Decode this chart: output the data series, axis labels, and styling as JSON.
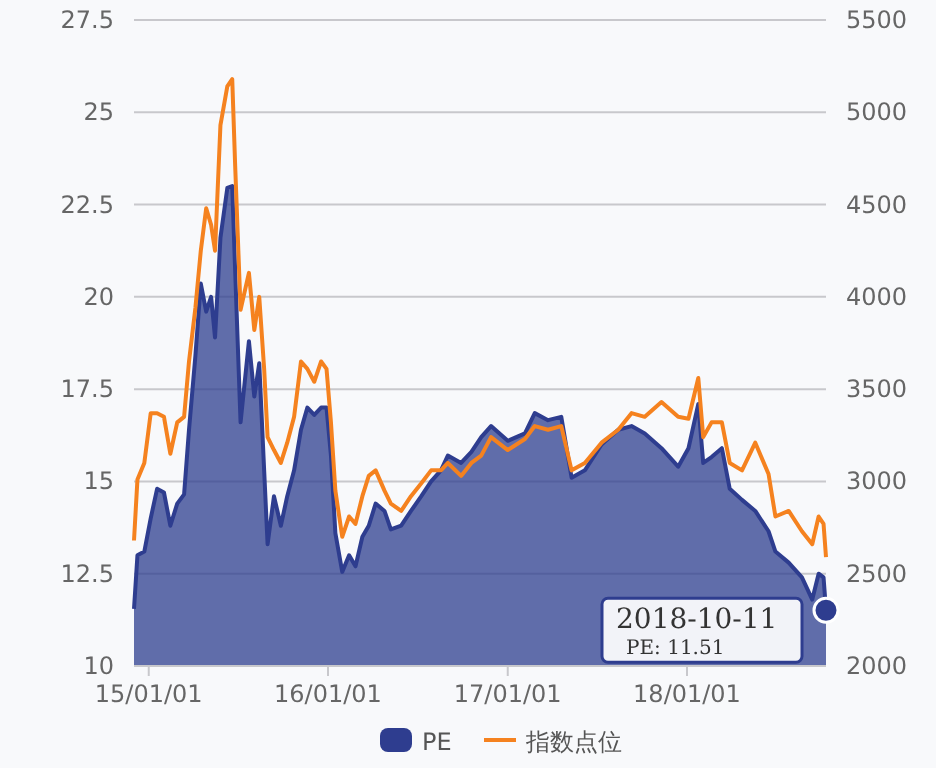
{
  "chart_data": {
    "type": "area",
    "x": [
      "2014-12-02",
      "2014-12-09",
      "2014-12-23",
      "2015-01-05",
      "2015-01-18",
      "2015-02-01",
      "2015-02-14",
      "2015-02-28",
      "2015-03-14",
      "2015-03-24",
      "2015-04-06",
      "2015-04-17",
      "2015-04-28",
      "2015-05-08",
      "2015-05-16",
      "2015-05-27",
      "2015-06-10",
      "2015-06-20",
      "2015-06-26",
      "2015-07-07",
      "2015-07-24",
      "2015-08-04",
      "2015-08-14",
      "2015-08-24",
      "2015-08-31",
      "2015-09-13",
      "2015-09-27",
      "2015-10-10",
      "2015-10-24",
      "2015-11-07",
      "2015-11-20",
      "2015-12-04",
      "2015-12-18",
      "2015-12-29",
      "2016-01-07",
      "2016-01-16",
      "2016-01-30",
      "2016-02-13",
      "2016-02-26",
      "2016-03-11",
      "2016-03-24",
      "2016-04-07",
      "2016-04-25",
      "2016-05-08",
      "2016-05-29",
      "2016-06-18",
      "2016-07-09",
      "2016-07-29",
      "2016-08-18",
      "2016-09-01",
      "2016-09-28",
      "2016-10-19",
      "2016-11-08",
      "2016-11-28",
      "2017-01-01",
      "2017-02-05",
      "2017-02-25",
      "2017-03-24",
      "2017-04-20",
      "2017-05-11",
      "2017-06-07",
      "2017-07-11",
      "2017-08-14",
      "2017-09-10",
      "2017-10-07",
      "2017-11-10",
      "2017-12-14",
      "2018-01-04",
      "2018-01-24",
      "2018-02-03",
      "2018-02-20",
      "2018-03-13",
      "2018-03-29",
      "2018-04-23",
      "2018-05-20",
      "2018-06-16",
      "2018-06-30",
      "2018-07-27",
      "2018-08-23",
      "2018-09-13",
      "2018-09-26",
      "2018-10-06",
      "2018-10-11"
    ],
    "series": [
      {
        "name": "PE",
        "color": "#2e3d8f",
        "values": [
          11.55,
          13.0,
          13.1,
          14.0,
          14.8,
          14.7,
          13.8,
          14.4,
          14.65,
          16.4,
          18.4,
          20.36,
          19.6,
          20.0,
          18.9,
          21.6,
          22.95,
          23.0,
          20.7,
          16.6,
          18.8,
          17.3,
          18.2,
          15.3,
          13.3,
          14.6,
          13.8,
          14.6,
          15.3,
          16.4,
          17.0,
          16.8,
          17.0,
          17.0,
          15.7,
          13.6,
          12.55,
          13.0,
          12.7,
          13.5,
          13.8,
          14.4,
          14.2,
          13.7,
          13.8,
          14.2,
          14.6,
          15.0,
          15.3,
          15.7,
          15.5,
          15.8,
          16.2,
          16.5,
          16.1,
          16.3,
          16.85,
          16.66,
          16.75,
          15.1,
          15.3,
          16.0,
          16.4,
          16.5,
          16.3,
          15.9,
          15.4,
          15.9,
          17.1,
          15.5,
          15.66,
          15.9,
          14.8,
          14.5,
          14.2,
          13.65,
          13.1,
          12.8,
          12.4,
          11.8,
          12.5,
          12.4,
          11.51
        ]
      },
      {
        "name": "指数点位",
        "type": "line",
        "axis": "y2",
        "color": "#f5821f",
        "values": [
          2680,
          3010,
          3100,
          3370,
          3370,
          3350,
          3150,
          3320,
          3350,
          3650,
          3940,
          4250,
          4480,
          4390,
          4250,
          4930,
          5140,
          5180,
          4710,
          3930,
          4130,
          3820,
          4000,
          3610,
          3240,
          3170,
          3100,
          3210,
          3350,
          3650,
          3610,
          3540,
          3650,
          3610,
          3320,
          2950,
          2700,
          2810,
          2770,
          2920,
          3030,
          3060,
          2950,
          2880,
          2840,
          2920,
          2990,
          3060,
          3060,
          3100,
          3030,
          3100,
          3140,
          3240,
          3170,
          3230,
          3300,
          3280,
          3300,
          3060,
          3100,
          3210,
          3280,
          3370,
          3350,
          3430,
          3350,
          3340,
          3560,
          3240,
          3320,
          3320,
          3100,
          3060,
          3210,
          3040,
          2810,
          2840,
          2730,
          2660,
          2810,
          2770,
          2590
        ]
      }
    ],
    "xlim": [
      "2014-12-02",
      "2018-10-11"
    ],
    "xticks": [
      {
        "value": "2015-01-01",
        "label": "15/01/01"
      },
      {
        "value": "2016-01-01",
        "label": "16/01/01"
      },
      {
        "value": "2017-01-01",
        "label": "17/01/01"
      },
      {
        "value": "2018-01-01",
        "label": "18/01/01"
      }
    ],
    "ylim": [
      10,
      27.5
    ],
    "yticks": [
      10,
      12.5,
      15,
      17.5,
      20,
      22.5,
      25,
      27.5
    ],
    "y2lim": [
      2000,
      5500
    ],
    "y2ticks": [
      2000,
      2500,
      3000,
      3500,
      4000,
      4500,
      5000,
      5500
    ],
    "grid": "y",
    "legend": "bottom",
    "annotations": [
      {
        "text": "2018-10-11\nPE: 11.51",
        "x": "2018-10-11",
        "y": 11.51
      }
    ]
  }
}
